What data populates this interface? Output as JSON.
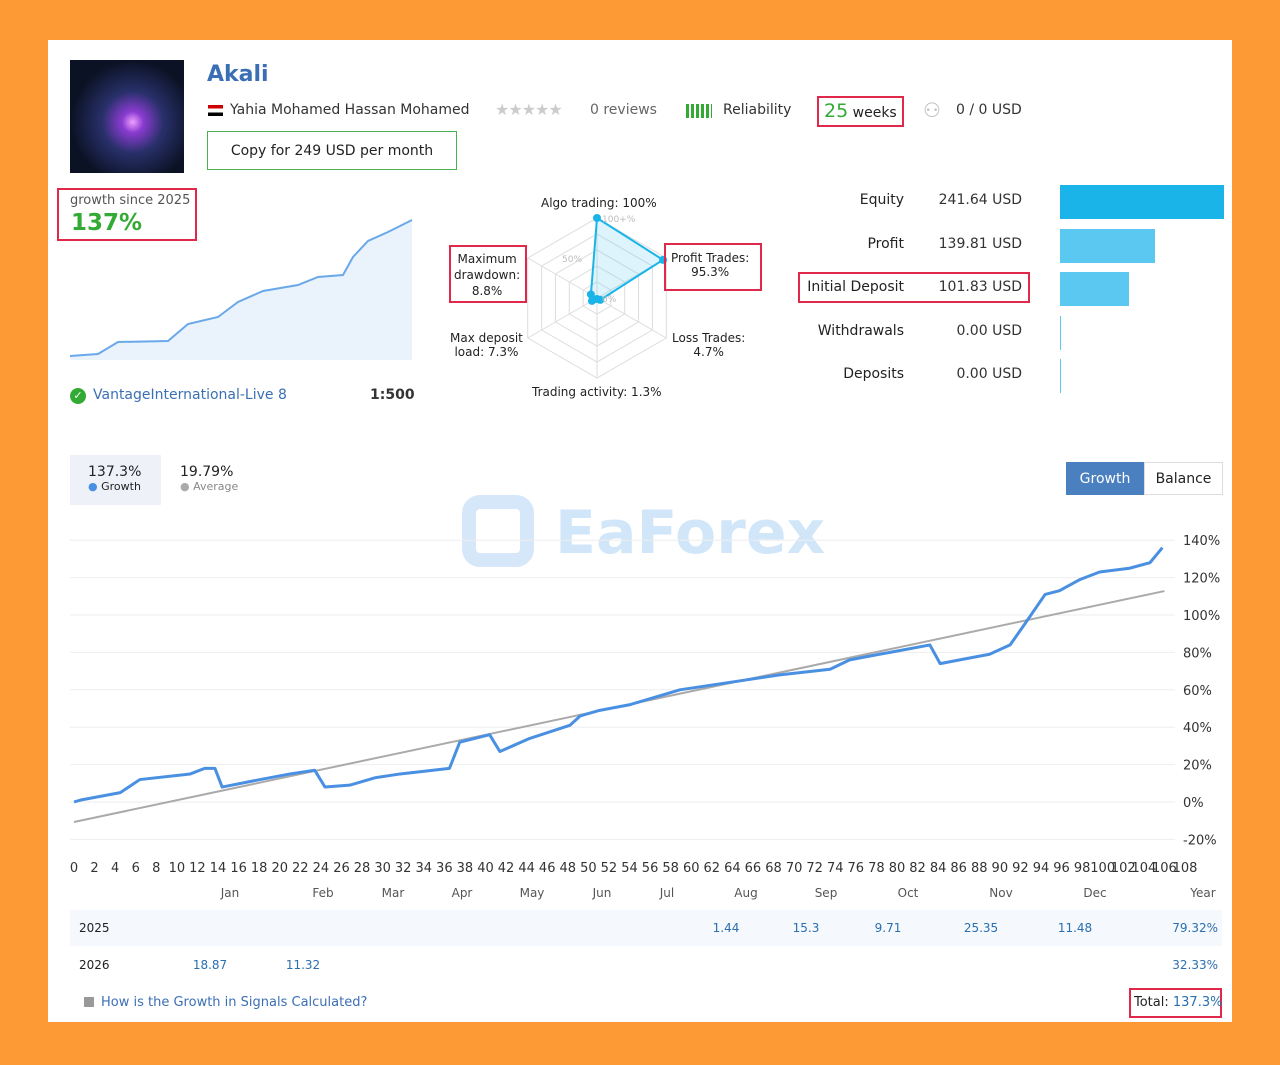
{
  "header": {
    "title": "Akali",
    "author": "Yahia Mohamed Hassan Mohamed",
    "reviews": "0 reviews",
    "rating": 0,
    "reliability_label": "Reliability",
    "weeks_num": "25",
    "weeks_label": "weeks",
    "subscribers": "0 / 0 USD",
    "copy_button": "Copy for 249 USD per month"
  },
  "summary": {
    "growth_label": "growth since 2025",
    "growth_value": "137%",
    "broker": "VantageInternational-Live 8",
    "leverage": "1:500"
  },
  "radar": {
    "labels": {
      "algo": "Algo trading: 100%",
      "profit": "Profit Trades:",
      "profit_v": "95.3%",
      "loss": "Loss Trades:",
      "loss_v": "4.7%",
      "activity": "Trading activity: 1.3%",
      "load": "Max deposit",
      "load_v": "load: 7.3%",
      "dd": "Maximum",
      "dd2": "drawdown:",
      "dd_v": "8.8%"
    },
    "values": [
      100,
      95.3,
      4.7,
      1.3,
      7.3,
      8.8
    ],
    "ring_labels": [
      "100+%",
      "50%",
      "0%"
    ]
  },
  "stats": [
    {
      "label": "Equity",
      "value": "241.64 USD",
      "bar": 1.0,
      "color": "#1ab4e8"
    },
    {
      "label": "Profit",
      "value": "139.81 USD",
      "bar": 0.58,
      "color": "#5bc8f2"
    },
    {
      "label": "Initial Deposit",
      "value": "101.83 USD",
      "bar": 0.42,
      "color": "#5bc8f2"
    },
    {
      "label": "Withdrawals",
      "value": "0.00 USD",
      "bar": 0,
      "color": "#5bc8f2"
    },
    {
      "label": "Deposits",
      "value": "0.00 USD",
      "bar": 0,
      "color": "#5bc8f2"
    }
  ],
  "legend": {
    "growth_value": "137.3%",
    "growth_label": "Growth",
    "avg_value": "19.79%",
    "avg_label": "Average"
  },
  "tabs": {
    "growth": "Growth",
    "balance": "Balance"
  },
  "watermark": "EaForex",
  "chart_data": {
    "type": "line",
    "xlim": [
      0,
      108
    ],
    "ylim": [
      -20,
      140
    ],
    "yticks": [
      "140%",
      "120%",
      "100%",
      "80%",
      "60%",
      "40%",
      "20%",
      "0%",
      "-20%"
    ],
    "xticks": [
      0,
      2,
      4,
      6,
      8,
      10,
      12,
      14,
      16,
      18,
      20,
      22,
      24,
      26,
      28,
      30,
      32,
      34,
      36,
      38,
      40,
      42,
      44,
      46,
      48,
      50,
      52,
      54,
      56,
      58,
      60,
      62,
      64,
      66,
      68,
      70,
      72,
      74,
      76,
      78,
      80,
      82,
      84,
      86,
      88,
      90,
      92,
      94,
      96,
      98,
      100,
      102,
      104,
      106,
      108
    ],
    "series": [
      {
        "name": "Growth",
        "color": "#4a90e2",
        "x": [
          0,
          0.6,
          4.5,
          6.4,
          11.3,
          12.7,
          13.7,
          14.4,
          18.1,
          21,
          23.4,
          24.4,
          26.8,
          29.3,
          31.7,
          36.5,
          37.5,
          40.4,
          41.4,
          44.3,
          48.2,
          49.2,
          51.1,
          54,
          58.9,
          63.8,
          68.6,
          73.5,
          75.4,
          78.3,
          80.3,
          83.2,
          84.2,
          86.1,
          89,
          91,
          92.4,
          94.4,
          95.8,
          97.8,
          99.7,
          102.6,
          104.6,
          105.8
        ],
        "y": [
          0,
          1,
          5,
          12,
          15,
          18,
          18,
          8,
          12,
          15,
          17,
          8,
          9,
          13,
          15,
          18,
          32,
          36,
          27,
          34,
          41,
          46,
          49,
          52,
          60,
          64,
          68,
          71,
          76,
          79,
          81,
          84,
          74,
          76,
          79,
          84,
          95,
          111,
          113,
          119,
          123,
          125,
          128,
          136
        ]
      },
      {
        "name": "Average",
        "color": "#aaaaaa",
        "x": [
          0,
          106
        ],
        "y": [
          -10.7,
          112.8
        ]
      }
    ]
  },
  "table": {
    "months": [
      "Jan",
      "Feb",
      "Mar",
      "Apr",
      "May",
      "Jun",
      "Jul",
      "Aug",
      "Sep",
      "Oct",
      "Nov",
      "Dec",
      "Year"
    ],
    "rows": [
      {
        "year": "2025",
        "values": [
          "",
          "",
          "",
          "",
          "",
          "",
          "",
          "1.44",
          "15.3",
          "9.71",
          "25.35",
          "11.48",
          "79.32%"
        ]
      },
      {
        "year": "2026",
        "values": [
          "18.87",
          "11.32",
          "",
          "",
          "",
          "",
          "",
          "",
          "",
          "",
          "",
          "",
          "32.33%"
        ]
      }
    ]
  },
  "footer": {
    "help_link": "How is the Growth in Signals Calculated?",
    "total_label": "Total:",
    "total_value": "137.3%"
  }
}
